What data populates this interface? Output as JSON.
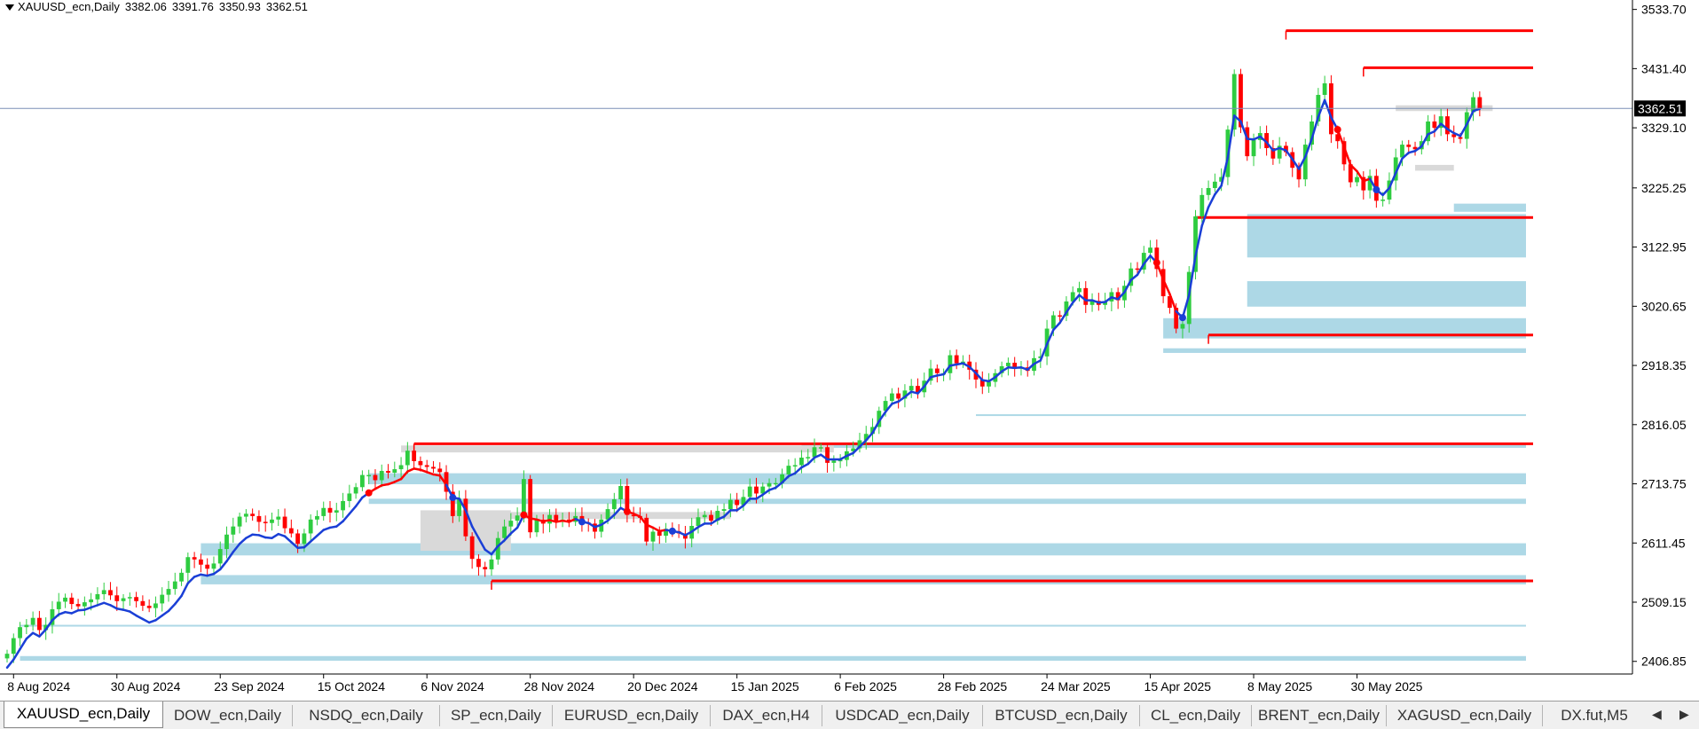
{
  "header": {
    "symbol": "XAUUSD_ecn,Daily",
    "open": "3382.06",
    "high": "3391.76",
    "low": "3350.93",
    "close": "3362.51"
  },
  "chart_data": {
    "type": "candlestick",
    "symbol": "XAUUSD_ecn",
    "timeframe": "Daily",
    "y_axis_ticks": [
      3533.7,
      3431.4,
      3329.1,
      3225.25,
      3122.95,
      3020.65,
      2918.35,
      2816.05,
      2713.75,
      2611.45,
      2509.15,
      2406.85
    ],
    "ylim": [
      2385,
      3550
    ],
    "current_price": 3362.51,
    "current_price_label": "3362.51",
    "x_labels": [
      "8 Aug 2024",
      "30 Aug 2024",
      "23 Sep 2024",
      "15 Oct 2024",
      "6 Nov 2024",
      "28 Nov 2024",
      "20 Dec 2024",
      "15 Jan 2025",
      "6 Feb 2025",
      "28 Feb 2025",
      "24 Mar 2025",
      "15 Apr 2025",
      "8 May 2025",
      "30 May 2025"
    ],
    "closes": [
      2420,
      2447,
      2466,
      2470,
      2482,
      2461,
      2470,
      2497,
      2510,
      2517,
      2506,
      2502,
      2509,
      2514,
      2523,
      2530,
      2521,
      2511,
      2516,
      2518,
      2511,
      2503,
      2499,
      2507,
      2522,
      2532,
      2545,
      2560,
      2587,
      2583,
      2574,
      2567,
      2576,
      2601,
      2626,
      2640,
      2657,
      2662,
      2658,
      2648,
      2646,
      2652,
      2657,
      2637,
      2628,
      2610,
      2628,
      2652,
      2658,
      2672,
      2664,
      2668,
      2684,
      2697,
      2708,
      2729,
      2729,
      2720,
      2736,
      2733,
      2739,
      2746,
      2771,
      2753,
      2746,
      2743,
      2740,
      2734,
      2700,
      2658,
      2688,
      2623,
      2584,
      2570,
      2566,
      2583,
      2620,
      2640,
      2650,
      2659,
      2722,
      2630,
      2652,
      2645,
      2660,
      2650,
      2652,
      2648,
      2658,
      2647,
      2645,
      2631,
      2652,
      2670,
      2687,
      2710,
      2660,
      2658,
      2655,
      2614,
      2631,
      2624,
      2636,
      2632,
      2628,
      2619,
      2641,
      2656,
      2660,
      2650,
      2667,
      2670,
      2686,
      2677,
      2691,
      2709,
      2697,
      2709,
      2715,
      2715,
      2730,
      2745,
      2746,
      2759,
      2760,
      2777,
      2777,
      2750,
      2754,
      2755,
      2770,
      2775,
      2789,
      2800,
      2812,
      2840,
      2857,
      2870,
      2861,
      2875,
      2883,
      2872,
      2892,
      2913,
      2905,
      2905,
      2936,
      2922,
      2925,
      2911,
      2894,
      2882,
      2890,
      2905,
      2917,
      2923,
      2913,
      2915,
      2909,
      2931,
      2934,
      2982,
      3005,
      3004,
      3029,
      3045,
      3052,
      3023,
      3030,
      3023,
      3029,
      3045,
      3031,
      3056,
      3086,
      3084,
      3113,
      3122,
      3085,
      3038,
      3018,
      2982,
      2990,
      3080,
      3176,
      3213,
      3225,
      3236,
      3244,
      3326,
      3422,
      3330,
      3280,
      3308,
      3320,
      3294,
      3276,
      3298,
      3287,
      3260,
      3240,
      3300,
      3340,
      3386,
      3406,
      3318,
      3306,
      3266,
      3235,
      3244,
      3221,
      3246,
      3203,
      3205,
      3238,
      3278,
      3300,
      3296,
      3292,
      3306,
      3340,
      3329,
      3349,
      3318,
      3313,
      3310,
      3356,
      3382,
      3362
    ],
    "series": [
      {
        "name": "",
        "color": "#1a3fd6",
        "values": [
          2396,
          2410,
          2428,
          2446,
          2456,
          2450,
          2462,
          2478,
          2488,
          2492,
          2490,
          2495,
          2496,
          2500,
          2504,
          2508,
          2504,
          2498,
          2496,
          2493,
          2486,
          2480,
          2474,
          2478,
          2486,
          2494,
          2506,
          2520,
          2542,
          2553,
          2557,
          2555,
          2558,
          2566,
          2580,
          2596,
          2610,
          2620,
          2626,
          2625,
          2621,
          2620,
          2627,
          2623,
          2613,
          2603,
          2604,
          2614,
          2624,
          2634,
          2638,
          2640,
          2649,
          2662,
          2675,
          2690,
          2698,
          2705,
          2711,
          2713,
          2717,
          2722,
          2735,
          2740,
          2738,
          2734,
          2730,
          2728,
          2712,
          2690,
          2688,
          2668,
          2640,
          2620,
          2600,
          2592,
          2606,
          2616,
          2628,
          2638,
          2660,
          2654,
          2652,
          2649,
          2651,
          2648,
          2650,
          2648,
          2653,
          2648,
          2646,
          2639,
          2643,
          2650,
          2660,
          2672,
          2666,
          2662,
          2657,
          2643,
          2638,
          2632,
          2634,
          2632,
          2630,
          2625,
          2631,
          2639,
          2645,
          2645,
          2652,
          2657,
          2668,
          2668,
          2676,
          2688,
          2688,
          2695,
          2703,
          2707,
          2716,
          2727,
          2732,
          2742,
          2748,
          2759,
          2764,
          2756,
          2756,
          2756,
          2762,
          2767,
          2778,
          2789,
          2802,
          2822,
          2838,
          2852,
          2856,
          2864,
          2873,
          2870,
          2882,
          2898,
          2901,
          2903,
          2918,
          2920,
          2922,
          2916,
          2905,
          2893,
          2891,
          2898,
          2908,
          2915,
          2914,
          2915,
          2911,
          2921,
          2927,
          2955,
          2980,
          2992,
          3010,
          3027,
          3040,
          3031,
          3031,
          3027,
          3028,
          3036,
          3033,
          3045,
          3066,
          3075,
          3094,
          3108,
          3096,
          3067,
          3042,
          3012,
          3001,
          3040,
          3108,
          3160,
          3192,
          3214,
          3229,
          3278,
          3350,
          3340,
          3310,
          3309,
          3314,
          3304,
          3290,
          3294,
          3290,
          3275,
          3258,
          3279,
          3310,
          3348,
          3377,
          3347,
          3326,
          3296,
          3265,
          3254,
          3237,
          3241,
          3222,
          3213,
          3225,
          3251,
          3276,
          3286,
          3289,
          3297,
          3318,
          3323,
          3336,
          3327,
          3320,
          3315,
          3335,
          3358,
          3362
        ]
      }
    ],
    "colors": {
      "bull_candle": "#2ecc40",
      "bear_candle": "#ff0000",
      "trend_up": "#1a3fd6",
      "trend_down": "#ff0000",
      "zone_fill": "#add8e6",
      "zone_gray": "#d9d9d9",
      "level_line": "#ff0000",
      "price_line": "#7a8fb5"
    },
    "blue_zones": [
      {
        "from": 228,
        "y1": 3142,
        "y2": 3162
      },
      {
        "from": 224,
        "y1": 3184,
        "y2": 3198
      },
      {
        "from": 192,
        "y1": 3105,
        "y2": 3180
      },
      {
        "from": 192,
        "y1": 3020,
        "y2": 3064
      },
      {
        "from": 179,
        "y1": 2965,
        "y2": 3000
      },
      {
        "from": 179,
        "y1": 2940,
        "y2": 2948
      },
      {
        "from": 123,
        "y1": 2776,
        "y2": 2783
      },
      {
        "from": 56,
        "y1": 2713,
        "y2": 2732
      },
      {
        "from": 56,
        "y1": 2679,
        "y2": 2688
      },
      {
        "from": 80,
        "y1": 2593,
        "y2": 2598
      },
      {
        "from": 30,
        "y1": 2540,
        "y2": 2556
      },
      {
        "from": 30,
        "y1": 2590,
        "y2": 2611
      },
      {
        "from": 2,
        "y1": 2408,
        "y2": 2416
      },
      {
        "from": 2,
        "y1": 2467,
        "y2": 2470
      },
      {
        "from": 150,
        "y1": 2832,
        "y2": 2834
      }
    ],
    "gray_zones": [
      {
        "from": 61,
        "to": 128,
        "y1": 2768,
        "y2": 2780
      },
      {
        "from": 68,
        "to": 112,
        "y1": 2653,
        "y2": 2665
      },
      {
        "from": 64,
        "to": 78,
        "y1": 2598,
        "y2": 2668
      },
      {
        "from": 215,
        "to": 230,
        "y1": 3358,
        "y2": 3368
      },
      {
        "from": 218,
        "to": 224,
        "y1": 3255,
        "y2": 3265
      }
    ],
    "red_levels": [
      {
        "from": 198,
        "value": 3497
      },
      {
        "from": 210,
        "value": 3433
      },
      {
        "from": 184,
        "value": 3174
      },
      {
        "from": 186,
        "value": 2971
      },
      {
        "from": 63,
        "value": 2783
      },
      {
        "from": 75,
        "value": 2546
      }
    ]
  },
  "tabs": [
    "XAUUSD_ecn,Daily",
    "DOW_ecn,Daily",
    "NSDQ_ecn,Daily",
    "SP_ecn,Daily",
    "EURUSD_ecn,Daily",
    "DAX_ecn,H4",
    "USDCAD_ecn,Daily",
    "BTCUSD_ecn,Daily",
    "CL_ecn,Daily",
    "BRENT_ecn,Daily",
    "XAGUSD_ecn,Daily",
    "DX.fut,M5"
  ],
  "nav": {
    "prev_icon": "◀",
    "next_icon": "▶"
  }
}
